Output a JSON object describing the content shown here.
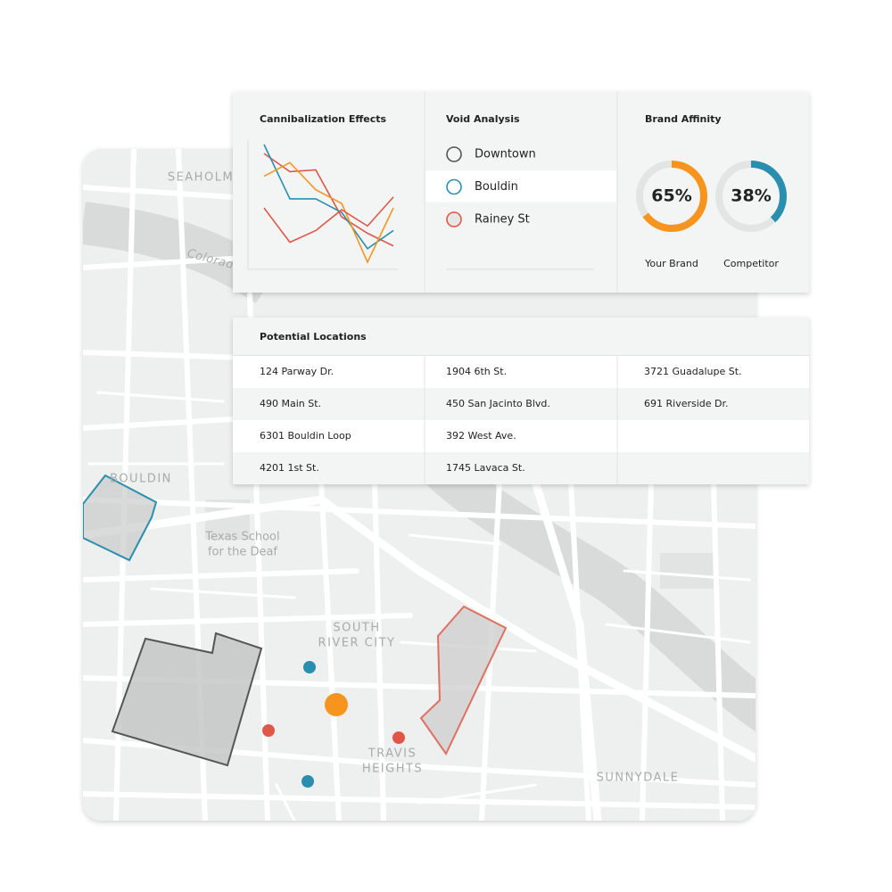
{
  "map": {
    "labels": [
      "SEAHOLM",
      "Colorado",
      "BOULDIN",
      "Texas School",
      "for the Deaf",
      "SOUTH",
      "RIVER CITY",
      "TRAVIS",
      "HEIGHTS",
      "SUNNYDALE"
    ]
  },
  "cannibalization": {
    "title": "Cannibalization Effects",
    "series": [
      {
        "color": "#e0574a",
        "values": [
          130,
          110,
          112,
          60,
          42,
          28
        ]
      },
      {
        "color": "#2a8fae",
        "values": [
          140,
          80,
          80,
          65,
          25,
          45
        ]
      },
      {
        "color": "#f7941d",
        "values": [
          105,
          120,
          90,
          75,
          10,
          70
        ]
      },
      {
        "color": "#e0574a",
        "values": [
          70,
          32,
          45,
          68,
          50,
          82
        ]
      }
    ]
  },
  "void_analysis": {
    "title": "Void Analysis",
    "items": [
      {
        "label": "Downtown",
        "color": "#555555",
        "fill": "#f3f4f4"
      },
      {
        "label": "Bouldin",
        "color": "#2a8fae",
        "fill": "#ffffff"
      },
      {
        "label": "Rainey St",
        "color": "#e0574a",
        "fill": "#e6e6e6"
      }
    ]
  },
  "brand_affinity": {
    "title": "Brand Affinity",
    "labels": [
      "Your Brand",
      "Competitor"
    ],
    "values": [
      65,
      38
    ],
    "value_labels": [
      "65%",
      "38%"
    ],
    "colors": [
      "#f7941d",
      "#2a8fae"
    ]
  },
  "potential_locations": {
    "title": "Potential Locations",
    "columns": [
      [
        "124 Parway Dr.",
        "490 Main St.",
        "6301 Bouldin Loop",
        "4201 1st St."
      ],
      [
        "1904 6th St.",
        "450 San Jacinto Blvd.",
        "392 West Ave.",
        "1745 Lavaca St."
      ],
      [
        "3721 Guadalupe St.",
        "691 Riverside Dr."
      ]
    ]
  }
}
